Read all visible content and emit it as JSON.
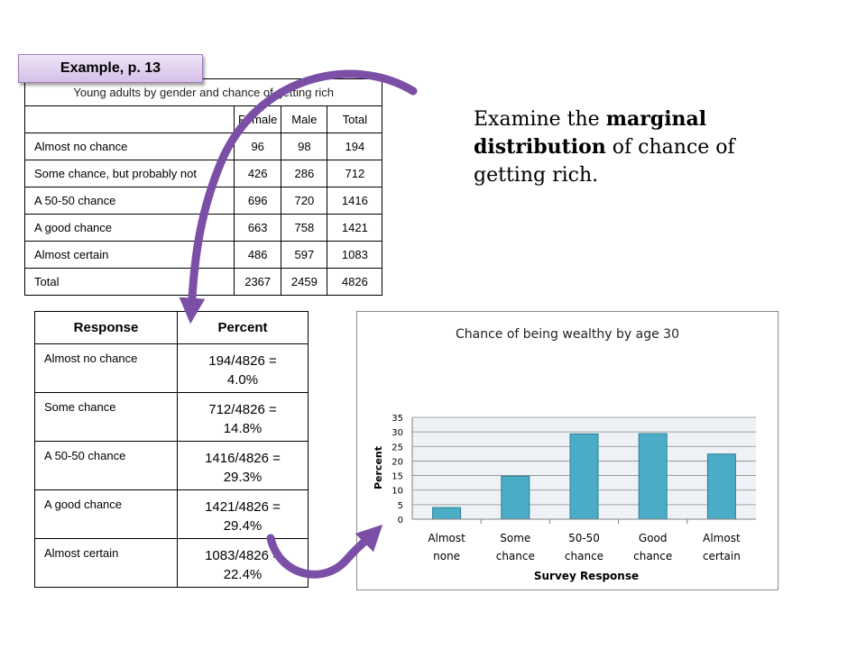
{
  "badge": {
    "label": "Example, p. 13"
  },
  "top_table": {
    "caption": "Young adults by gender and chance of getting rich",
    "columns": [
      "",
      "Female",
      "Male",
      "Total"
    ],
    "rows": [
      [
        "Almost no chance",
        "96",
        "98",
        "194"
      ],
      [
        "Some chance, but probably not",
        "426",
        "286",
        "712"
      ],
      [
        "A 50-50 chance",
        "696",
        "720",
        "1416"
      ],
      [
        "A good chance",
        "663",
        "758",
        "1421"
      ],
      [
        "Almost certain",
        "486",
        "597",
        "1083"
      ],
      [
        "Total",
        "2367",
        "2459",
        "4826"
      ]
    ]
  },
  "examine": {
    "pre": "Examine the ",
    "bold": "marginal distribution",
    "post": " of chance of getting rich."
  },
  "pct_table": {
    "headers": [
      "Response",
      "Percent"
    ],
    "rows": [
      [
        "Almost no chance",
        "194/4826 =",
        "4.0%"
      ],
      [
        "Some chance",
        "712/4826 =",
        "14.8%"
      ],
      [
        "A 50-50 chance",
        "1416/4826 =",
        "29.3%"
      ],
      [
        "A good chance",
        "1421/4826 =",
        "29.4%"
      ],
      [
        "Almost certain",
        "1083/4826 =",
        "22.4%"
      ]
    ]
  },
  "colors": {
    "bar": "#4bacc6",
    "bar_edge": "#2c7f96",
    "plot_bg": "#eef1f5",
    "arrow": "#7b4fa6"
  },
  "chart_data": {
    "type": "bar",
    "title": "Chance of being wealthy by age 30",
    "xlabel": "Survey Response",
    "ylabel": "Percent",
    "categories": [
      [
        "Almost",
        "none"
      ],
      [
        "Some",
        "chance"
      ],
      [
        "50-50",
        "chance"
      ],
      [
        "Good",
        "chance"
      ],
      [
        "Almost",
        "certain"
      ]
    ],
    "values": [
      4.0,
      14.8,
      29.3,
      29.4,
      22.4
    ],
    "ylim": [
      0,
      35
    ],
    "yticks": [
      0,
      5,
      10,
      15,
      20,
      25,
      30,
      35
    ],
    "grid": true
  }
}
